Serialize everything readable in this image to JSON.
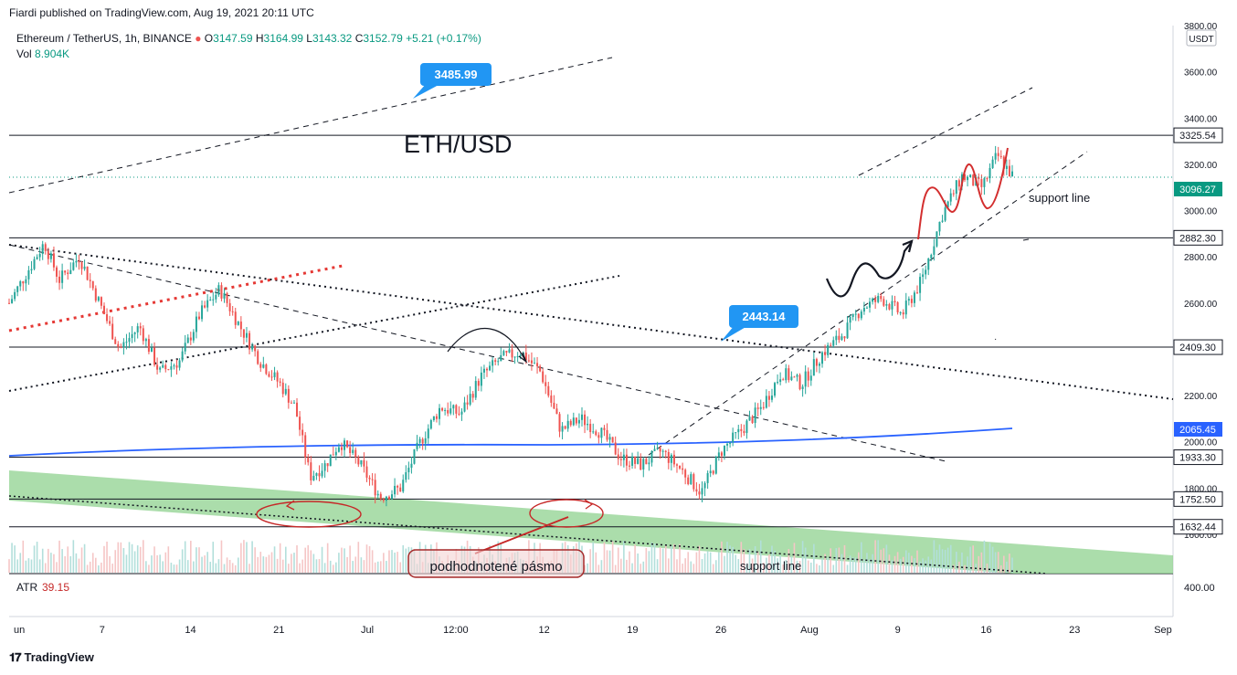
{
  "publisher": "Fiardi published on TradingView.com, Aug 19, 2021 20:11 UTC",
  "legend": {
    "symbol": "Ethereum / TetherUS, 1h, BINANCE",
    "o_label": "O",
    "o": "3147.59",
    "h_label": "H",
    "h": "3164.99",
    "l_label": "L",
    "l": "3143.32",
    "c_label": "C",
    "c": "3152.79",
    "change": "+5.21 (+0.17%)",
    "vol_label": "Vol",
    "vol": "8.904K"
  },
  "atr": {
    "label": "ATR",
    "value": "39.15"
  },
  "currency_button": "USDT",
  "annotations": {
    "title": "ETH/USD",
    "callout_high": "3485.99",
    "callout_mid": "2443.14",
    "support_line_upper": "support line",
    "support_line_lower": "support line",
    "box_label": "podhodnotené pásmo"
  },
  "colors": {
    "up": "#26a69a",
    "down": "#ef5350",
    "ma": "#2962ff",
    "band": "#8fd18f",
    "callout": "#2196f3",
    "red_sketch": "#d32f2f",
    "price_tag": "#089981"
  },
  "chart_data": {
    "type": "candlestick",
    "symbol": "ETHUSDT",
    "interval": "1h",
    "exchange": "BINANCE",
    "ylim": [
      1580,
      3800
    ],
    "y_ticks": [
      3800,
      3600,
      3400,
      3200,
      3000,
      2800,
      2600,
      2400,
      2200,
      2000,
      1800,
      1600
    ],
    "y_tick_labels": [
      "3800.00",
      "3600.00",
      "3400.00",
      "3200.00",
      "3000.00",
      "2800.00",
      "2600.00",
      "2400.00",
      "2200.00",
      "2000.00",
      "1800.00",
      "1600.00"
    ],
    "x_tick_labels": [
      "un",
      "7",
      "14",
      "21",
      "Jul",
      "12:00",
      "12",
      "19",
      "26",
      "Aug",
      "9",
      "16",
      "23",
      "Sep"
    ],
    "horizontal_levels": [
      3325.54,
      2882.3,
      2409.3,
      1933.3,
      1752.5,
      1632.44
    ],
    "horizontal_level_labels": [
      "3325.54",
      "2882.30",
      "2409.30",
      "1933.30",
      "1752.50",
      "1632.44"
    ],
    "moving_average_last": "2065.45",
    "current_price_label": "3096.27",
    "atr_axis_label": "400.00",
    "price_path": [
      [
        0,
        2600
      ],
      [
        0.02,
        2750
      ],
      [
        0.035,
        2860
      ],
      [
        0.05,
        2700
      ],
      [
        0.07,
        2800
      ],
      [
        0.09,
        2600
      ],
      [
        0.11,
        2400
      ],
      [
        0.13,
        2500
      ],
      [
        0.15,
        2300
      ],
      [
        0.17,
        2350
      ],
      [
        0.19,
        2550
      ],
      [
        0.21,
        2660
      ],
      [
        0.23,
        2500
      ],
      [
        0.25,
        2350
      ],
      [
        0.27,
        2250
      ],
      [
        0.285,
        2150
      ],
      [
        0.3,
        1850
      ],
      [
        0.315,
        1900
      ],
      [
        0.33,
        2000
      ],
      [
        0.35,
        1900
      ],
      [
        0.37,
        1760
      ],
      [
        0.39,
        1800
      ],
      [
        0.41,
        2000
      ],
      [
        0.43,
        2150
      ],
      [
        0.45,
        2120
      ],
      [
        0.47,
        2280
      ],
      [
        0.49,
        2360
      ],
      [
        0.51,
        2390
      ],
      [
        0.53,
        2300
      ],
      [
        0.55,
        2050
      ],
      [
        0.57,
        2100
      ],
      [
        0.59,
        2040
      ],
      [
        0.61,
        1930
      ],
      [
        0.63,
        1900
      ],
      [
        0.65,
        1960
      ],
      [
        0.67,
        1880
      ],
      [
        0.69,
        1780
      ],
      [
        0.71,
        1960
      ],
      [
        0.73,
        2050
      ],
      [
        0.75,
        2150
      ],
      [
        0.77,
        2300
      ],
      [
        0.79,
        2250
      ],
      [
        0.81,
        2380
      ],
      [
        0.83,
        2460
      ],
      [
        0.85,
        2580
      ],
      [
        0.87,
        2620
      ],
      [
        0.89,
        2550
      ],
      [
        0.91,
        2700
      ],
      [
        0.93,
        2980
      ],
      [
        0.95,
        3150
      ],
      [
        0.97,
        3100
      ],
      [
        0.985,
        3240
      ],
      [
        1.0,
        3150
      ]
    ]
  }
}
